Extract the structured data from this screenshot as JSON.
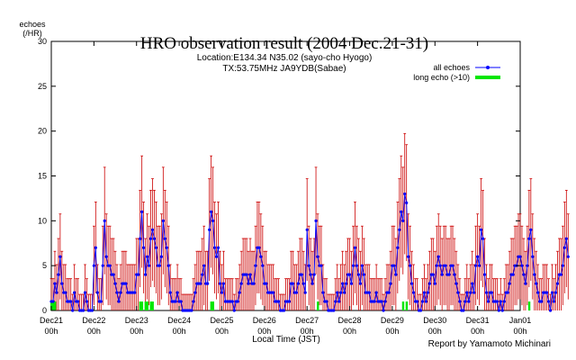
{
  "chart_data": {
    "type": "line",
    "title": "HRO observation result (2004 Dec.21-31)",
    "subtitle_lines": [
      "Location:E134.34 N35.02 (sayo-cho Hyogo)",
      "TX:53.75MHz JA9YDB(Sabae)"
    ],
    "ylabel_lines": [
      "echoes",
      "(/HR)"
    ],
    "xlabel": "Local Time (JST)",
    "credit": "Report by Yamamoto Michinari",
    "ylim": [
      0,
      30
    ],
    "yticks": [
      0,
      5,
      10,
      15,
      20,
      25,
      30
    ],
    "x_range_hours": [
      0,
      264
    ],
    "xticks": [
      {
        "top": "Dec21",
        "bottom": "00h"
      },
      {
        "top": "Dec22",
        "bottom": "00h"
      },
      {
        "top": "Dec23",
        "bottom": "00h"
      },
      {
        "top": "Dec24",
        "bottom": "00h"
      },
      {
        "top": "Dec25",
        "bottom": "00h"
      },
      {
        "top": "Dec26",
        "bottom": "00h"
      },
      {
        "top": "Dec27",
        "bottom": "00h"
      },
      {
        "top": "Dec28",
        "bottom": "00h"
      },
      {
        "top": "Dec29",
        "bottom": "00h"
      },
      {
        "top": "Dec30",
        "bottom": "00h"
      },
      {
        "top": "Dec31",
        "bottom": "00h"
      },
      {
        "top": "Jan01",
        "bottom": "00h"
      }
    ],
    "legend_position": "top-right",
    "series": [
      {
        "name": "all echoes",
        "color": "#0000ff",
        "error_color": "#cc0000",
        "values": [
          1,
          1,
          3,
          2,
          4,
          6,
          3,
          2,
          2,
          1,
          1,
          1,
          0,
          2,
          1,
          1,
          0,
          0,
          0,
          2,
          1,
          0,
          0,
          0,
          5,
          7,
          2,
          1,
          1,
          5,
          10,
          6,
          5,
          5,
          4,
          4,
          3,
          2,
          1,
          2,
          3,
          3,
          3,
          2,
          2,
          2,
          2,
          2,
          4,
          4,
          8,
          11,
          7,
          4,
          6,
          5,
          8,
          9,
          8,
          7,
          5,
          5,
          6,
          10,
          8,
          7,
          5,
          2,
          1,
          1,
          1,
          2,
          1,
          1,
          0,
          0,
          0,
          0,
          0,
          0,
          1,
          2,
          3,
          3,
          3,
          4,
          5,
          3,
          3,
          9,
          11,
          10,
          7,
          6,
          7,
          3,
          2,
          3,
          1,
          1,
          1,
          1,
          1,
          0,
          1,
          1,
          2,
          3,
          4,
          4,
          4,
          3,
          4,
          3,
          3,
          5,
          7,
          7,
          6,
          5,
          3,
          3,
          2,
          2,
          2,
          2,
          1,
          1,
          1,
          0,
          0,
          0,
          1,
          1,
          1,
          3,
          3,
          2,
          2,
          3,
          4,
          4,
          3,
          2,
          9,
          5,
          4,
          3,
          4,
          10,
          6,
          5,
          5,
          2,
          1,
          1,
          0,
          0,
          0,
          0,
          1,
          2,
          1,
          2,
          3,
          2,
          3,
          4,
          4,
          3,
          5,
          7,
          5,
          4,
          3,
          5,
          4,
          2,
          2,
          2,
          1,
          1,
          1,
          2,
          1,
          1,
          1,
          0,
          1,
          2,
          2,
          3,
          5,
          5,
          4,
          7,
          9,
          11,
          10,
          13,
          12,
          6,
          5,
          3,
          2,
          1,
          1,
          0,
          0,
          1,
          2,
          1,
          2,
          3,
          4,
          4,
          3,
          5,
          6,
          5,
          4,
          5,
          5,
          4,
          4,
          5,
          5,
          4,
          3,
          2,
          1,
          0,
          0,
          1,
          2,
          1,
          2,
          3,
          2,
          5,
          6,
          5,
          9,
          8,
          4,
          2,
          1,
          2,
          2,
          1,
          1,
          1,
          0,
          1,
          0,
          1,
          2,
          2,
          3,
          4,
          4,
          5,
          5,
          6,
          6,
          5,
          4,
          3,
          5,
          8,
          9,
          6,
          4,
          3,
          2,
          1,
          1,
          2,
          2,
          2,
          1,
          0,
          2,
          1,
          2,
          3,
          4,
          4,
          5,
          7,
          8,
          6
        ]
      },
      {
        "name": "long echo (>10)",
        "color": "#00e600",
        "values": [
          1,
          1,
          1,
          0,
          0,
          0,
          0,
          0,
          0,
          0,
          0,
          0,
          0,
          0,
          0,
          0,
          0,
          0,
          0,
          0,
          0,
          0,
          0,
          0,
          0,
          0,
          0,
          0,
          0,
          0,
          0,
          0,
          0,
          0,
          0,
          0,
          0,
          0,
          0,
          0,
          0,
          0,
          0,
          0,
          0,
          0,
          0,
          0,
          0,
          0,
          1,
          1,
          0,
          1,
          1,
          0,
          1,
          1,
          0,
          0,
          0,
          0,
          0,
          0,
          0,
          0,
          0,
          0,
          0,
          0,
          0,
          0,
          0,
          0,
          0,
          0,
          0,
          0,
          0,
          0,
          0,
          0,
          0,
          0,
          0,
          0,
          0,
          0,
          0,
          0,
          1,
          1,
          0,
          0,
          0,
          0,
          0,
          0,
          0,
          0,
          0,
          0,
          0,
          0,
          0,
          0,
          0,
          0,
          0,
          0,
          0,
          0,
          0,
          0,
          0,
          0,
          0,
          0,
          0,
          0,
          0,
          0,
          0,
          0,
          0,
          0,
          0,
          0,
          0,
          0,
          0,
          0,
          0,
          0,
          0,
          0,
          0,
          0,
          0,
          0,
          0,
          0,
          0,
          0,
          0,
          0,
          0,
          0,
          0,
          0,
          1,
          0,
          0,
          0,
          0,
          0,
          0,
          0,
          0,
          0,
          0,
          0,
          0,
          0,
          0,
          0,
          0,
          0,
          0,
          0,
          0,
          0,
          0,
          0,
          0,
          0,
          0,
          0,
          0,
          0,
          0,
          0,
          0,
          0,
          0,
          0,
          0,
          0,
          0,
          0,
          0,
          0,
          0,
          0,
          0,
          0,
          0,
          0,
          1,
          0,
          1,
          0,
          0,
          0,
          0,
          0,
          0,
          0,
          0,
          0,
          0,
          0,
          0,
          0,
          0,
          0,
          0,
          0,
          0,
          0,
          0,
          0,
          0,
          0,
          0,
          0,
          0,
          0,
          0,
          0,
          0,
          0,
          0,
          0,
          0,
          0,
          0,
          0,
          0,
          0,
          0,
          0,
          0,
          0,
          0,
          0,
          0,
          0,
          0,
          0,
          0,
          0,
          0,
          0,
          0,
          0,
          0,
          0,
          0,
          0,
          0,
          0,
          0,
          0,
          0,
          0,
          0,
          0,
          0,
          1,
          0,
          0,
          0,
          0,
          0,
          0,
          0,
          0,
          0,
          0,
          0,
          0,
          0,
          0,
          0,
          0,
          0,
          0,
          0,
          0,
          0,
          0,
          0,
          0,
          0,
          0,
          0,
          0,
          0,
          0,
          0,
          0,
          0,
          0,
          0,
          0,
          0,
          0,
          0,
          0,
          0
        ]
      }
    ]
  }
}
